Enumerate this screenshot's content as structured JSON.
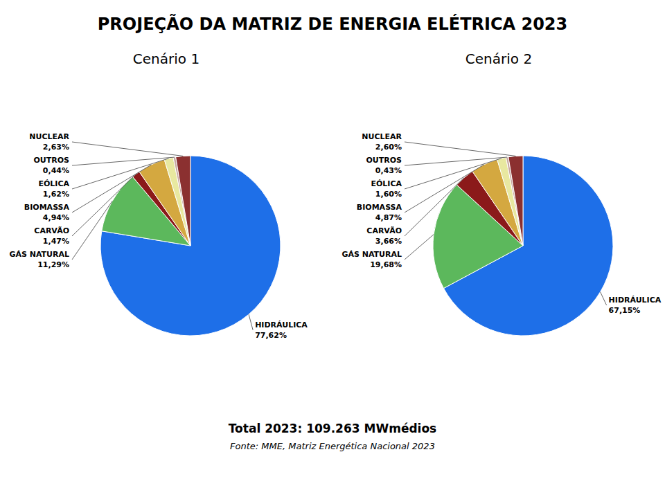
{
  "title": "PROJEÇÃO DA MATRIZ DE ENERGIA ELÉTRICA 2023",
  "annotations": [
    "Total 2023: 109.263 MWmédios",
    "Fonte: MME, Matriz Energética Nacional 2023"
  ],
  "chart_data": [
    {
      "type": "pie",
      "title": "Cenário 1",
      "categories": [
        "HIDRÁULICA",
        "GÁS NATURAL",
        "CARVÃO",
        "BIOMASSA",
        "EÓLICA",
        "OUTROS",
        "NUCLEAR"
      ],
      "values": [
        77.62,
        11.29,
        1.47,
        4.94,
        1.62,
        0.44,
        2.63
      ],
      "value_labels": [
        "77,62%",
        "11,29%",
        "1,47%",
        "4,94%",
        "1,62%",
        "0,44%",
        "2,63%"
      ],
      "colors": [
        "#1E6FE8",
        "#5CB85C",
        "#8B1A1A",
        "#D4A840",
        "#E8E8A0",
        "#C8A8A0",
        "#8B3030"
      ],
      "data_labels": true
    },
    {
      "type": "pie",
      "title": "Cenário 2",
      "categories": [
        "HIDRÁULICA",
        "GÁS NATURAL",
        "CARVÃO",
        "BIOMASSA",
        "EÓLICA",
        "OUTROS",
        "NUCLEAR"
      ],
      "values": [
        67.15,
        19.68,
        3.66,
        4.87,
        1.6,
        0.43,
        2.6
      ],
      "value_labels": [
        "67,15%",
        "19,68%",
        "3,66%",
        "4,87%",
        "1,60%",
        "0,43%",
        "2,60%"
      ],
      "colors": [
        "#1E6FE8",
        "#5CB85C",
        "#8B1A1A",
        "#D4A840",
        "#E8E8A0",
        "#C8A8A0",
        "#8B3030"
      ],
      "data_labels": true
    }
  ]
}
